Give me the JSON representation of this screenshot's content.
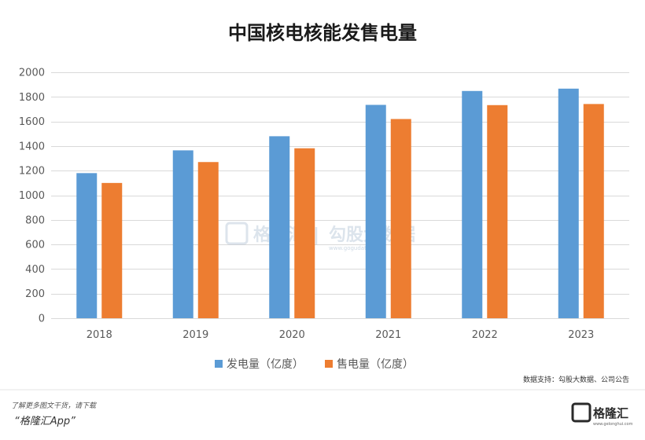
{
  "chart_data": {
    "type": "bar",
    "title": "中国核电核能发售电量",
    "categories": [
      "2018",
      "2019",
      "2020",
      "2021",
      "2022",
      "2023"
    ],
    "series": [
      {
        "name": "发电量（亿度）",
        "color": "#5b9bd5",
        "values": [
          1180,
          1365,
          1480,
          1735,
          1848,
          1867
        ]
      },
      {
        "name": "售电量（亿度）",
        "color": "#ed7d31",
        "values": [
          1100,
          1270,
          1382,
          1620,
          1733,
          1742
        ]
      }
    ],
    "ylim": [
      0,
      2000
    ],
    "yticks": [
      0,
      200,
      400,
      600,
      800,
      1000,
      1200,
      1400,
      1600,
      1800,
      2000
    ],
    "grid": true,
    "legend_position": "bottom-center"
  },
  "source_note": "数据支持：勾股大数据、公司公告",
  "watermark": {
    "brand": "格隆汇",
    "divider": "|",
    "name": "勾股大数据",
    "url": "www.gogudata.com"
  },
  "footer": {
    "promo_line": "了解更多图文干货，请下载",
    "app_name": "“格隆汇App”",
    "logo_text": "格隆汇",
    "logo_url": "www.gelonghui.com"
  }
}
